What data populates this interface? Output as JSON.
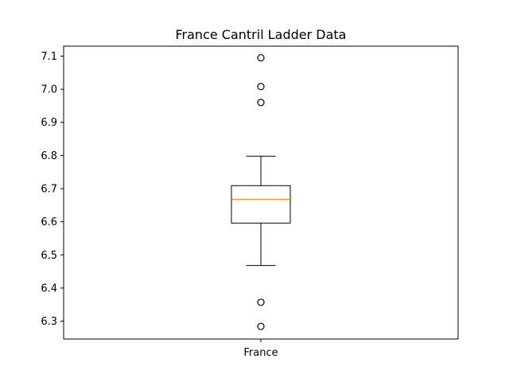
{
  "chart_data": {
    "type": "boxplot",
    "title": "France Cantril Ladder Data",
    "xlabel": "",
    "ylabel": "",
    "categories": [
      "France"
    ],
    "ylim": [
      6.246,
      6.13
    ],
    "y_ticks": [
      "6.3",
      "6.4",
      "6.5",
      "6.6",
      "6.7",
      "6.8",
      "6.9",
      "7.0",
      "7.1"
    ],
    "y_tick_values": [
      6.3,
      6.4,
      6.5,
      6.6,
      6.7,
      6.8,
      6.9,
      7.0,
      7.1
    ],
    "grid": false,
    "boxes": [
      {
        "category": "France",
        "whisker_low": 6.468,
        "q1": 6.596,
        "median": 6.668,
        "q3": 6.709,
        "whisker_high": 6.798,
        "outliers": [
          6.284,
          6.357,
          6.96,
          7.008,
          7.095
        ]
      }
    ],
    "colors": {
      "box": "#000000",
      "median": "#ff7f0e",
      "outlier": "#000000"
    }
  }
}
